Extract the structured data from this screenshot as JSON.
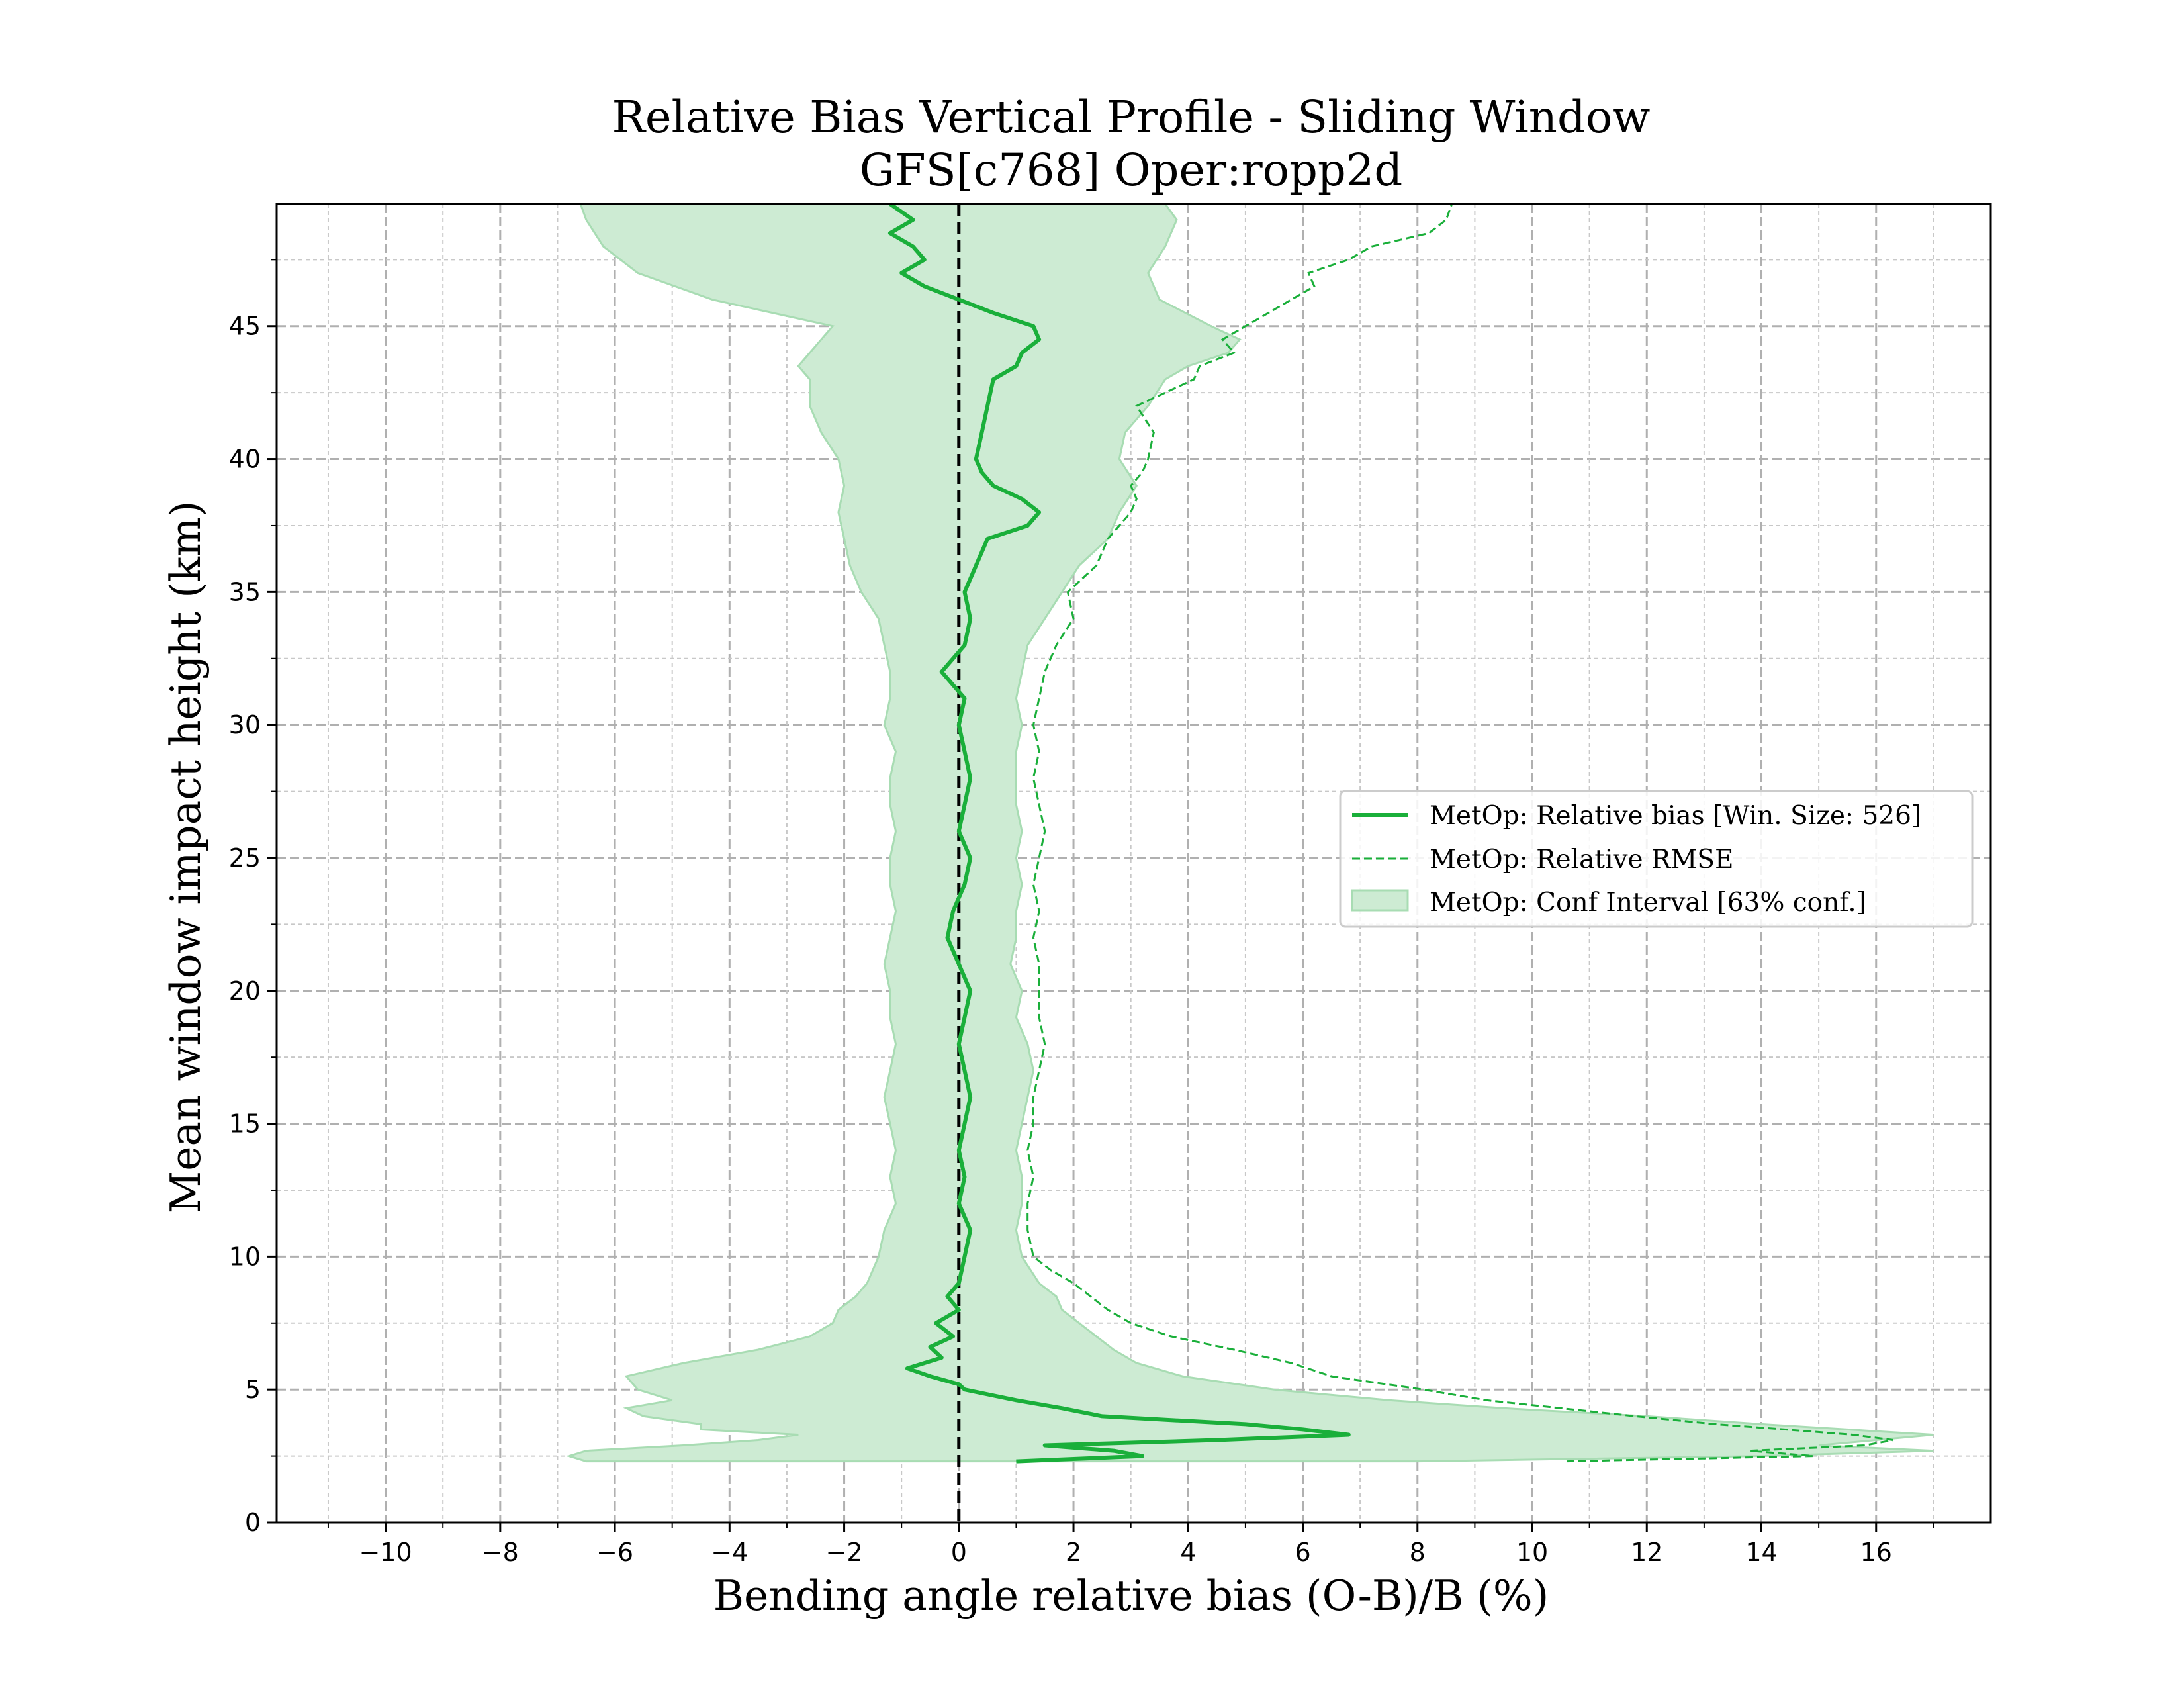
{
  "chart_data": {
    "type": "line",
    "title": "Relative Bias Vertical Profile - Sliding Window",
    "subtitle": "GFS[c768] Oper:ropp2d",
    "xlabel": "Bending angle relative bias (O-B)/B (%)",
    "ylabel": "Mean window impact height (km)",
    "xlim": [
      -11.9,
      18.0
    ],
    "ylim": [
      0,
      49.6
    ],
    "xticks": [
      -10,
      -8,
      -6,
      -4,
      -2,
      0,
      2,
      4,
      6,
      8,
      10,
      12,
      14,
      16
    ],
    "xtick_labels": [
      "−10",
      "−8",
      "−6",
      "−4",
      "−2",
      "0",
      "2",
      "4",
      "6",
      "8",
      "10",
      "12",
      "14",
      "16"
    ],
    "yticks": [
      0,
      5,
      10,
      15,
      20,
      25,
      30,
      35,
      40,
      45
    ],
    "ytick_labels": [
      "0",
      "5",
      "10",
      "15",
      "20",
      "25",
      "30",
      "35",
      "40",
      "45"
    ],
    "grid": true,
    "minor_grid": true,
    "legend_position": "center-right",
    "colors": {
      "series": "#1aaf3a",
      "fill": "#cdebd3",
      "zero_line": "#000000"
    },
    "series": [
      {
        "name": "MetOp: Relative bias [Win. Size: 526]",
        "style": "solid",
        "y": [
          2.3,
          2.5,
          2.7,
          2.9,
          3.1,
          3.3,
          3.5,
          3.7,
          4.0,
          4.3,
          4.6,
          5.0,
          5.2,
          5.5,
          5.8,
          6.2,
          6.6,
          7.0,
          7.5,
          8.0,
          8.5,
          9.0,
          10,
          11,
          12,
          13,
          14,
          15,
          16,
          17,
          18,
          19,
          20,
          21,
          22,
          23,
          24,
          25,
          26,
          27,
          28,
          29,
          30,
          31,
          32,
          33,
          34,
          35,
          36,
          37,
          37.5,
          38,
          38.5,
          39,
          39.5,
          40,
          41,
          42,
          43,
          43.5,
          44,
          44.5,
          45,
          45.5,
          46,
          46.5,
          47,
          47.5,
          48,
          48.5,
          49,
          49.6
        ],
        "x": [
          1.0,
          3.2,
          2.7,
          1.5,
          4.5,
          6.8,
          6.0,
          5.0,
          2.5,
          1.8,
          1.0,
          0.1,
          0.0,
          -0.5,
          -0.9,
          -0.3,
          -0.5,
          -0.1,
          -0.4,
          0.0,
          -0.2,
          0.0,
          0.1,
          0.2,
          0.0,
          0.1,
          0.0,
          0.1,
          0.2,
          0.1,
          0.0,
          0.1,
          0.2,
          0.0,
          -0.2,
          -0.1,
          0.1,
          0.2,
          0.0,
          0.1,
          0.2,
          0.1,
          0.0,
          0.1,
          -0.3,
          0.1,
          0.2,
          0.1,
          0.3,
          0.5,
          1.2,
          1.4,
          1.1,
          0.6,
          0.4,
          0.3,
          0.4,
          0.5,
          0.6,
          1.0,
          1.1,
          1.4,
          1.3,
          0.6,
          0.0,
          -0.6,
          -1.0,
          -0.6,
          -0.8,
          -1.2,
          -0.8,
          -1.2
        ]
      },
      {
        "name": "MetOp: Relative RMSE",
        "style": "dashed",
        "y": [
          2.3,
          2.5,
          2.7,
          2.9,
          3.1,
          3.3,
          3.5,
          3.7,
          4.0,
          4.3,
          4.6,
          5.0,
          5.5,
          6.0,
          6.5,
          7.0,
          7.5,
          8.0,
          8.5,
          9.0,
          9.5,
          10,
          11,
          12,
          13,
          14,
          15,
          16,
          17,
          18,
          19,
          20,
          21,
          22,
          23,
          24,
          25,
          26,
          27,
          28,
          29,
          30,
          31,
          32,
          33,
          34,
          35,
          36,
          37,
          37.5,
          38,
          38.5,
          39,
          39.5,
          40,
          41,
          42,
          43,
          43.5,
          44,
          44.5,
          45,
          45.5,
          46,
          46.5,
          47,
          47.5,
          48,
          48.5,
          49,
          49.6
        ],
        "x": [
          10.6,
          14.9,
          13.8,
          15.8,
          16.3,
          15.6,
          14.4,
          13.2,
          11.8,
          10.5,
          9.2,
          8.1,
          6.5,
          5.8,
          4.8,
          3.7,
          3.0,
          2.6,
          2.3,
          2.0,
          1.6,
          1.3,
          1.2,
          1.2,
          1.3,
          1.2,
          1.3,
          1.3,
          1.4,
          1.5,
          1.4,
          1.4,
          1.4,
          1.3,
          1.4,
          1.3,
          1.4,
          1.5,
          1.4,
          1.3,
          1.4,
          1.3,
          1.4,
          1.5,
          1.7,
          2.0,
          1.9,
          2.4,
          2.6,
          2.8,
          3.0,
          3.1,
          3.0,
          3.2,
          3.3,
          3.4,
          3.1,
          4.1,
          4.2,
          4.8,
          4.6,
          5.0,
          5.4,
          5.8,
          6.2,
          6.1,
          6.8,
          7.2,
          8.2,
          8.5,
          8.6
        ]
      }
    ],
    "band": {
      "name": "MetOp: Conf Interval [63% conf.]",
      "y": [
        2.3,
        2.5,
        2.7,
        2.9,
        3.1,
        3.3,
        3.5,
        3.7,
        4.0,
        4.3,
        4.6,
        5.0,
        5.5,
        6.0,
        6.5,
        7.0,
        7.5,
        8.0,
        8.5,
        9.0,
        10,
        11,
        12,
        13,
        14,
        15,
        16,
        17,
        18,
        19,
        20,
        21,
        22,
        23,
        24,
        25,
        26,
        27,
        28,
        29,
        30,
        31,
        32,
        33,
        34,
        35,
        36,
        37,
        38,
        39,
        40,
        41,
        42,
        43,
        43.5,
        44,
        44.5,
        45,
        46,
        47,
        48,
        49,
        49.6
      ],
      "lower": [
        -6.5,
        -6.8,
        -6.5,
        -4.8,
        -3.5,
        -2.8,
        -4.5,
        -4.5,
        -5.5,
        -5.8,
        -5.0,
        -5.6,
        -5.8,
        -4.8,
        -3.5,
        -2.6,
        -2.2,
        -2.1,
        -1.8,
        -1.6,
        -1.4,
        -1.3,
        -1.1,
        -1.2,
        -1.1,
        -1.2,
        -1.3,
        -1.2,
        -1.1,
        -1.2,
        -1.2,
        -1.3,
        -1.2,
        -1.1,
        -1.2,
        -1.2,
        -1.1,
        -1.2,
        -1.2,
        -1.1,
        -1.3,
        -1.2,
        -1.2,
        -1.3,
        -1.4,
        -1.7,
        -1.9,
        -2.0,
        -2.1,
        -2.0,
        -2.1,
        -2.4,
        -2.6,
        -2.6,
        -2.8,
        -2.6,
        -2.4,
        -2.2,
        -4.3,
        -5.6,
        -6.2,
        -6.5,
        -6.6
      ],
      "upper": [
        8.0,
        14.0,
        17.0,
        15.0,
        16.0,
        17.0,
        15.5,
        14.0,
        12.0,
        9.5,
        7.5,
        5.5,
        3.9,
        3.1,
        2.7,
        2.4,
        2.1,
        1.8,
        1.7,
        1.4,
        1.1,
        1.0,
        1.1,
        1.1,
        1.0,
        1.1,
        1.2,
        1.3,
        1.2,
        1.0,
        1.1,
        0.9,
        1.0,
        1.0,
        1.1,
        1.0,
        1.1,
        1.0,
        1.0,
        1.0,
        1.1,
        1.0,
        1.1,
        1.2,
        1.5,
        1.8,
        2.1,
        2.6,
        2.8,
        3.1,
        2.8,
        2.9,
        3.3,
        3.6,
        4.0,
        4.7,
        4.9,
        4.4,
        3.5,
        3.3,
        3.6,
        3.8,
        3.6
      ]
    }
  },
  "legend": {
    "items": [
      {
        "label": "MetOp: Relative bias [Win. Size: 526]",
        "kind": "solid"
      },
      {
        "label": "MetOp: Relative RMSE",
        "kind": "dashed"
      },
      {
        "label": "MetOp: Conf Interval [63% conf.]",
        "kind": "band"
      }
    ]
  }
}
